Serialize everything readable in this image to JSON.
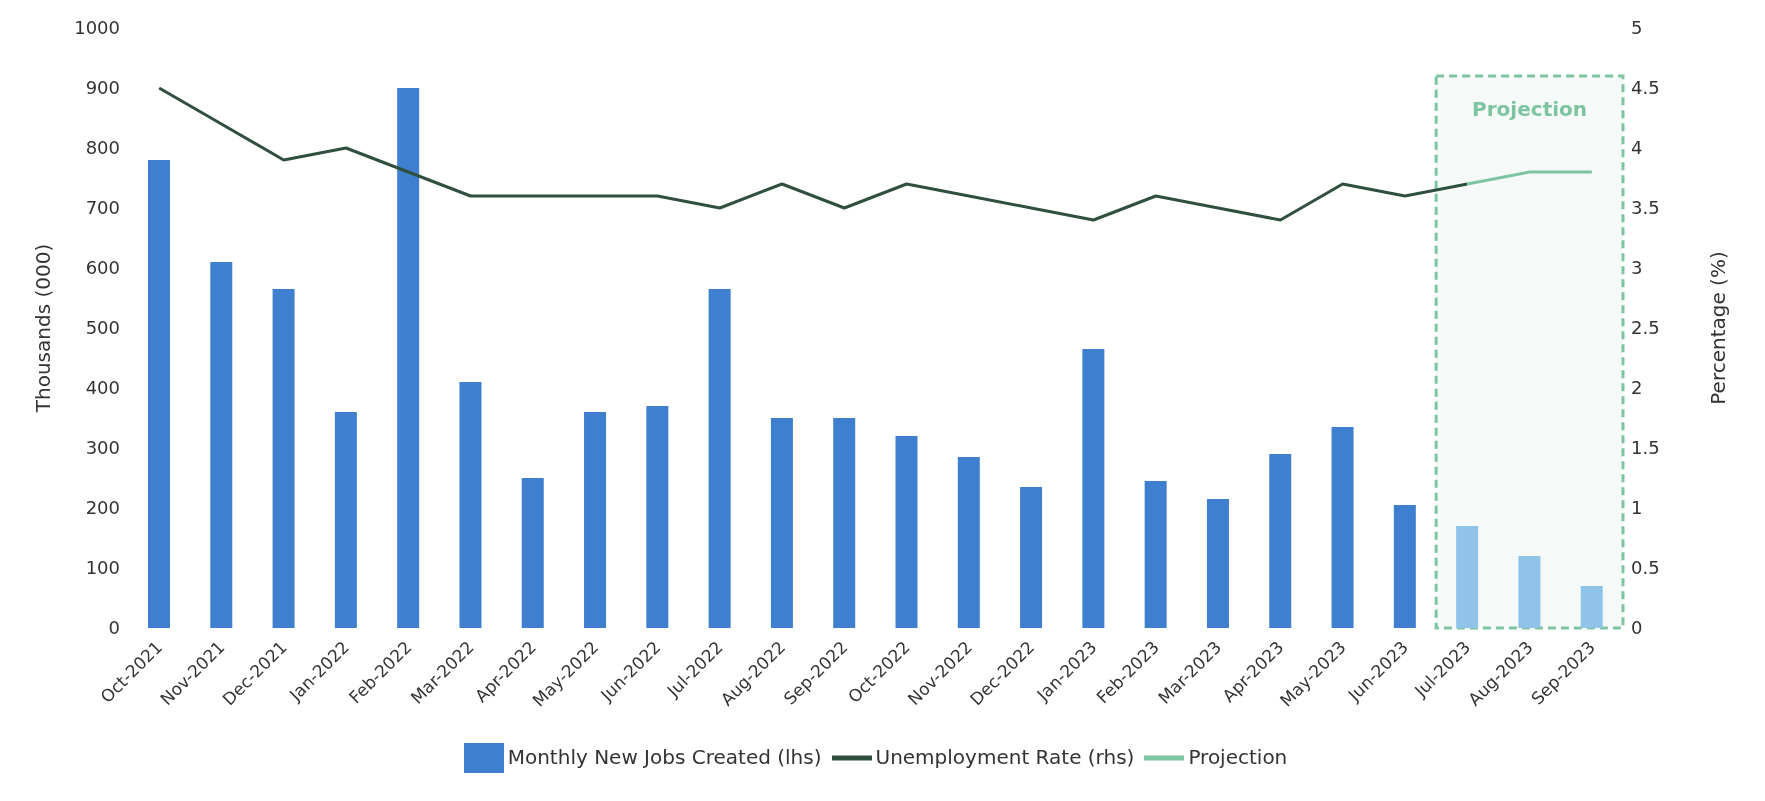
{
  "chart_data": {
    "type": "bar",
    "ylabel": "Thousands (000)",
    "y2label": "Percentage (%)",
    "categories": [
      "Oct-2021",
      "Nov-2021",
      "Dec-2021",
      "Jan-2022",
      "Feb-2022",
      "Mar-2022",
      "Apr-2022",
      "May-2022",
      "Jun-2022",
      "Jul-2022",
      "Aug-2022",
      "Sep-2022",
      "Oct-2022",
      "Nov-2022",
      "Dec-2022",
      "Jan-2023",
      "Feb-2023",
      "Mar-2023",
      "Apr-2023",
      "May-2023",
      "Jun-2023",
      "Jul-2023",
      "Aug-2023",
      "Sep-2023"
    ],
    "series": [
      {
        "name": "Monthly New Jobs Created (lhs)",
        "color": "#3f7fcf",
        "colors": [
          "#3f7fcf",
          "#3f7fcf",
          "#3f7fcf",
          "#3f7fcf",
          "#3f7fcf",
          "#3f7fcf",
          "#3f7fcf",
          "#3f7fcf",
          "#3f7fcf",
          "#3f7fcf",
          "#3f7fcf",
          "#3f7fcf",
          "#3f7fcf",
          "#3f7fcf",
          "#3f7fcf",
          "#3f7fcf",
          "#3f7fcf",
          "#3f7fcf",
          "#3f7fcf",
          "#3f7fcf",
          "#3f7fcf",
          "#8fc3ea",
          "#8fc3ea",
          "#8fc3ea"
        ],
        "values": [
          780,
          610,
          565,
          360,
          900,
          410,
          250,
          360,
          370,
          565,
          350,
          350,
          320,
          285,
          235,
          465,
          245,
          215,
          290,
          335,
          205,
          170,
          120,
          70
        ]
      },
      {
        "name": "Unemployment Rate (rhs)",
        "type": "line",
        "axis": "y2",
        "color": "#2f4f3f",
        "values": [
          4.5,
          4.2,
          3.9,
          4.0,
          3.8,
          3.6,
          3.6,
          3.6,
          3.6,
          3.5,
          3.7,
          3.5,
          3.7,
          3.6,
          3.5,
          3.4,
          3.6,
          3.5,
          3.4,
          3.7,
          3.6,
          3.7,
          null,
          null
        ]
      },
      {
        "name": "Projection",
        "type": "line",
        "axis": "y2",
        "color": "#7dc4a0",
        "values": [
          null,
          null,
          null,
          null,
          null,
          null,
          null,
          null,
          null,
          null,
          null,
          null,
          null,
          null,
          null,
          null,
          null,
          null,
          null,
          null,
          null,
          3.7,
          3.8,
          3.8
        ]
      }
    ],
    "ylim": [
      0,
      1000
    ],
    "yticks": [
      0,
      100,
      200,
      300,
      400,
      500,
      600,
      700,
      800,
      900,
      1000
    ],
    "y2lim": [
      0,
      5
    ],
    "y2ticks": [
      0,
      0.5,
      1,
      1.5,
      2,
      2.5,
      3,
      3.5,
      4,
      4.5,
      5
    ],
    "bands": [
      {
        "axis": "x",
        "from": "Jul-2023",
        "to": "Sep-2023",
        "label": "Projection",
        "color": "#7dc4a0"
      }
    ],
    "grid": false,
    "legend": "bottom",
    "marker": "none"
  }
}
